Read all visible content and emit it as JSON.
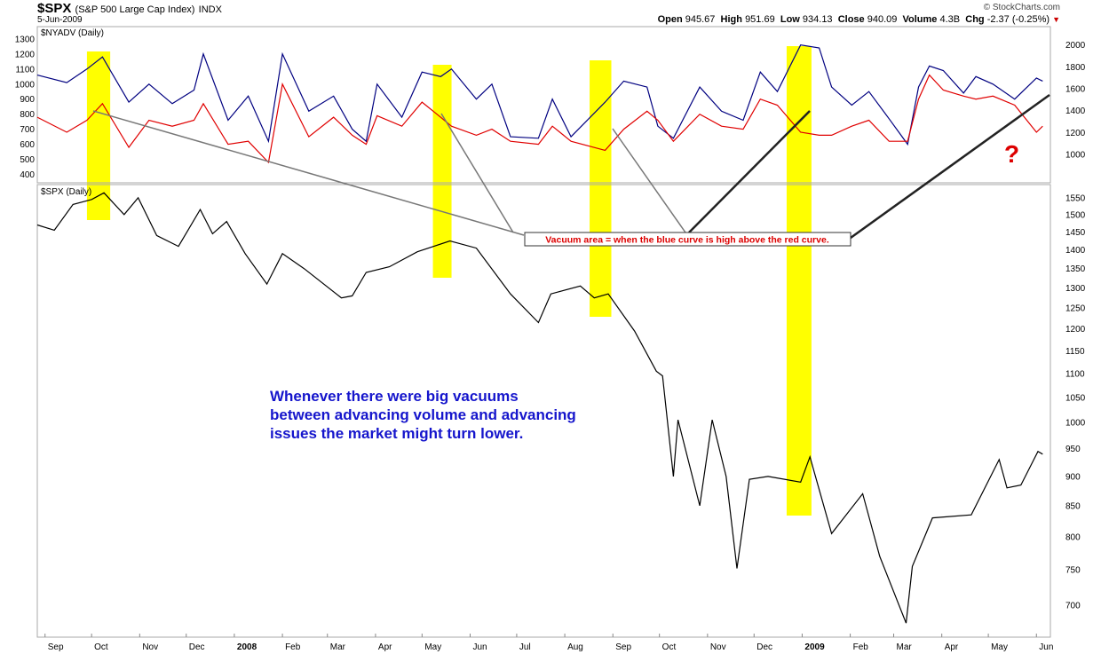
{
  "header": {
    "symbol": "$SPX",
    "name": "(S&P 500 Large Cap Index)",
    "exchange": "INDX",
    "date": "5-Jun-2009",
    "copyright": "© StockCharts.com",
    "open_label": "Open",
    "open": "945.67",
    "high_label": "High",
    "high": "951.69",
    "low_label": "Low",
    "low": "934.13",
    "close_label": "Close",
    "close": "940.09",
    "volume_label": "Volume",
    "volume": "4.3B",
    "chg_label": "Chg",
    "chg": "-2.37 (-0.25%)",
    "chg_arrow": "▼"
  },
  "annotations": {
    "callout": "Vacuum area = when the blue curve is high above the red curve.",
    "question": "?",
    "note_lines": [
      "Whenever there were big vacuums",
      "between advancing volume and advancing",
      "issues the market might turn lower."
    ],
    "highlight_color": "#ffff00",
    "callout_color": "#dd0000",
    "note_color": "#1515cc"
  },
  "chart_data": [
    {
      "type": "line",
      "title": "$NYADV (Daily)",
      "x_range": [
        "2007-08-27",
        "2009-06-10"
      ],
      "y_left_ticks": [
        1300,
        1200,
        1100,
        1000,
        900,
        800,
        700,
        600,
        500,
        400
      ],
      "y_left_range": [
        350,
        1370
      ],
      "y_right_ticks": [
        2000,
        1800,
        1600,
        1400,
        1200,
        1000
      ],
      "y_right_range": [
        750,
        2150
      ],
      "series": [
        {
          "color": "#000080",
          "axis": "left",
          "points": [
            [
              "2007-08-27",
              1060
            ],
            [
              "2007-09-15",
              1010
            ],
            [
              "2007-09-28",
              1100
            ],
            [
              "2007-10-08",
              1180
            ],
            [
              "2007-10-25",
              880
            ],
            [
              "2007-11-07",
              1000
            ],
            [
              "2007-11-22",
              870
            ],
            [
              "2007-12-06",
              960
            ],
            [
              "2007-12-12",
              1200
            ],
            [
              "2007-12-28",
              760
            ],
            [
              "2008-01-10",
              920
            ],
            [
              "2008-01-23",
              620
            ],
            [
              "2008-02-01",
              1200
            ],
            [
              "2008-02-18",
              820
            ],
            [
              "2008-03-05",
              920
            ],
            [
              "2008-03-17",
              700
            ],
            [
              "2008-03-26",
              620
            ],
            [
              "2008-04-02",
              1000
            ],
            [
              "2008-04-18",
              780
            ],
            [
              "2008-05-01",
              1080
            ],
            [
              "2008-05-13",
              1050
            ],
            [
              "2008-05-20",
              1100
            ],
            [
              "2008-06-05",
              900
            ],
            [
              "2008-06-15",
              1000
            ],
            [
              "2008-06-27",
              650
            ],
            [
              "2008-07-15",
              640
            ],
            [
              "2008-07-24",
              900
            ],
            [
              "2008-08-05",
              650
            ],
            [
              "2008-08-27",
              880
            ],
            [
              "2008-09-08",
              1020
            ],
            [
              "2008-09-23",
              980
            ],
            [
              "2008-09-30",
              720
            ],
            [
              "2008-10-10",
              640
            ],
            [
              "2008-10-27",
              980
            ],
            [
              "2008-11-10",
              820
            ],
            [
              "2008-11-24",
              760
            ],
            [
              "2008-12-05",
              1080
            ],
            [
              "2008-12-16",
              950
            ],
            [
              "2008-12-31",
              1260
            ],
            [
              "2009-01-12",
              1240
            ],
            [
              "2009-01-20",
              980
            ],
            [
              "2009-02-02",
              860
            ],
            [
              "2009-02-13",
              950
            ],
            [
              "2009-02-26",
              770
            ],
            [
              "2009-03-10",
              600
            ],
            [
              "2009-03-17",
              980
            ],
            [
              "2009-03-24",
              1120
            ],
            [
              "2009-04-02",
              1090
            ],
            [
              "2009-04-15",
              940
            ],
            [
              "2009-04-23",
              1050
            ],
            [
              "2009-05-04",
              1000
            ],
            [
              "2009-05-18",
              900
            ],
            [
              "2009-06-01",
              1040
            ],
            [
              "2009-06-05",
              1020
            ]
          ]
        },
        {
          "color": "#e00000",
          "axis": "left",
          "points": [
            [
              "2007-08-27",
              780
            ],
            [
              "2007-09-15",
              680
            ],
            [
              "2007-09-28",
              760
            ],
            [
              "2007-10-08",
              870
            ],
            [
              "2007-10-25",
              580
            ],
            [
              "2007-11-07",
              760
            ],
            [
              "2007-11-22",
              720
            ],
            [
              "2007-12-06",
              760
            ],
            [
              "2007-12-12",
              870
            ],
            [
              "2007-12-28",
              600
            ],
            [
              "2008-01-10",
              620
            ],
            [
              "2008-01-23",
              480
            ],
            [
              "2008-02-01",
              1000
            ],
            [
              "2008-02-18",
              650
            ],
            [
              "2008-03-05",
              780
            ],
            [
              "2008-03-17",
              660
            ],
            [
              "2008-03-26",
              600
            ],
            [
              "2008-04-02",
              790
            ],
            [
              "2008-04-18",
              720
            ],
            [
              "2008-05-01",
              880
            ],
            [
              "2008-05-13",
              780
            ],
            [
              "2008-05-20",
              720
            ],
            [
              "2008-06-05",
              660
            ],
            [
              "2008-06-15",
              700
            ],
            [
              "2008-06-27",
              620
            ],
            [
              "2008-07-15",
              600
            ],
            [
              "2008-07-24",
              720
            ],
            [
              "2008-08-05",
              620
            ],
            [
              "2008-08-27",
              560
            ],
            [
              "2008-09-08",
              700
            ],
            [
              "2008-09-23",
              820
            ],
            [
              "2008-09-30",
              760
            ],
            [
              "2008-10-10",
              620
            ],
            [
              "2008-10-27",
              800
            ],
            [
              "2008-11-10",
              720
            ],
            [
              "2008-11-24",
              700
            ],
            [
              "2008-12-05",
              900
            ],
            [
              "2008-12-16",
              860
            ],
            [
              "2008-12-31",
              680
            ],
            [
              "2009-01-12",
              660
            ],
            [
              "2009-01-20",
              660
            ],
            [
              "2009-02-02",
              720
            ],
            [
              "2009-02-13",
              760
            ],
            [
              "2009-02-26",
              620
            ],
            [
              "2009-03-10",
              620
            ],
            [
              "2009-03-17",
              900
            ],
            [
              "2009-03-24",
              1060
            ],
            [
              "2009-04-02",
              960
            ],
            [
              "2009-04-15",
              920
            ],
            [
              "2009-04-23",
              900
            ],
            [
              "2009-05-04",
              920
            ],
            [
              "2009-05-18",
              860
            ],
            [
              "2009-06-01",
              680
            ],
            [
              "2009-06-05",
              720
            ]
          ]
        }
      ]
    },
    {
      "type": "line",
      "title": "$SPX (Daily)",
      "x_range": [
        "2007-08-27",
        "2009-06-10"
      ],
      "y_ticks": [
        1550,
        1500,
        1450,
        1400,
        1350,
        1300,
        1250,
        1200,
        1150,
        1100,
        1050,
        1000,
        950,
        900,
        850,
        800,
        750,
        700
      ],
      "y_range": [
        660,
        1585
      ],
      "x_tick_labels": [
        "Sep",
        "Oct",
        "Nov",
        "Dec",
        "2008",
        "Feb",
        "Mar",
        "Apr",
        "May",
        "Jun",
        "Jul",
        "Aug",
        "Sep",
        "Oct",
        "Nov",
        "Dec",
        "2009",
        "Feb",
        "Mar",
        "Apr",
        "May",
        "Jun"
      ],
      "x_tick_dates": [
        "2007-09-01",
        "2007-10-01",
        "2007-11-01",
        "2007-12-01",
        "2008-01-01",
        "2008-02-01",
        "2008-03-01",
        "2008-04-01",
        "2008-05-01",
        "2008-06-01",
        "2008-07-01",
        "2008-08-01",
        "2008-09-01",
        "2008-10-01",
        "2008-11-01",
        "2008-12-01",
        "2009-01-01",
        "2009-02-01",
        "2009-03-01",
        "2009-04-01",
        "2009-05-01",
        "2009-06-01"
      ],
      "series": [
        {
          "color": "#000000",
          "points": [
            [
              "2007-08-27",
              1470
            ],
            [
              "2007-09-07",
              1455
            ],
            [
              "2007-09-19",
              1530
            ],
            [
              "2007-10-01",
              1545
            ],
            [
              "2007-10-09",
              1565
            ],
            [
              "2007-10-22",
              1500
            ],
            [
              "2007-10-31",
              1550
            ],
            [
              "2007-11-12",
              1440
            ],
            [
              "2007-11-26",
              1410
            ],
            [
              "2007-12-10",
              1515
            ],
            [
              "2007-12-18",
              1445
            ],
            [
              "2007-12-27",
              1480
            ],
            [
              "2008-01-08",
              1390
            ],
            [
              "2008-01-22",
              1310
            ],
            [
              "2008-02-01",
              1390
            ],
            [
              "2008-02-15",
              1350
            ],
            [
              "2008-03-10",
              1275
            ],
            [
              "2008-03-17",
              1280
            ],
            [
              "2008-03-26",
              1340
            ],
            [
              "2008-04-10",
              1355
            ],
            [
              "2008-04-28",
              1395
            ],
            [
              "2008-05-19",
              1425
            ],
            [
              "2008-06-05",
              1405
            ],
            [
              "2008-06-27",
              1285
            ],
            [
              "2008-07-15",
              1215
            ],
            [
              "2008-07-23",
              1285
            ],
            [
              "2008-08-11",
              1305
            ],
            [
              "2008-08-20",
              1275
            ],
            [
              "2008-08-29",
              1285
            ],
            [
              "2008-09-15",
              1195
            ],
            [
              "2008-09-29",
              1105
            ],
            [
              "2008-10-03",
              1095
            ],
            [
              "2008-10-10",
              900
            ],
            [
              "2008-10-13",
              1005
            ],
            [
              "2008-10-27",
              850
            ],
            [
              "2008-11-04",
              1005
            ],
            [
              "2008-11-13",
              900
            ],
            [
              "2008-11-20",
              752
            ],
            [
              "2008-11-28",
              895
            ],
            [
              "2008-12-10",
              900
            ],
            [
              "2008-12-31",
              890
            ],
            [
              "2009-01-06",
              935
            ],
            [
              "2009-01-20",
              805
            ],
            [
              "2009-02-09",
              870
            ],
            [
              "2009-02-20",
              770
            ],
            [
              "2009-03-09",
              676
            ],
            [
              "2009-03-13",
              755
            ],
            [
              "2009-03-26",
              830
            ],
            [
              "2009-04-20",
              835
            ],
            [
              "2009-05-08",
              930
            ],
            [
              "2009-05-13",
              880
            ],
            [
              "2009-05-22",
              885
            ],
            [
              "2009-06-02",
              945
            ],
            [
              "2009-06-05",
              940
            ]
          ]
        }
      ]
    }
  ]
}
